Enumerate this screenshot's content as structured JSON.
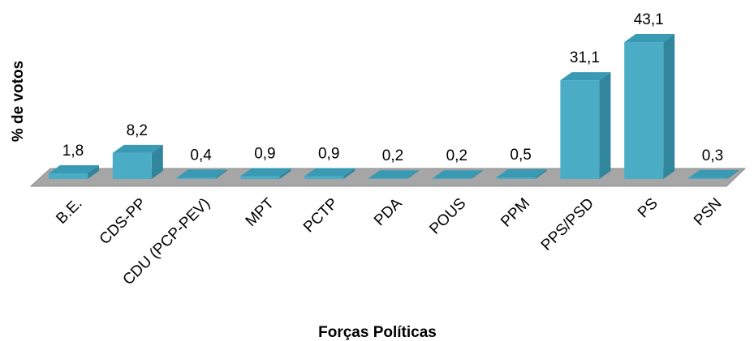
{
  "chart_data": {
    "type": "bar3d",
    "x_label": "Forças Políticas",
    "y_label": "% de votos",
    "categories": [
      "B.E.",
      "CDS-PP",
      "CDU (PCP-PEV)",
      "MPT",
      "PCTP",
      "PDA",
      "POUS",
      "PPM",
      "PPS/PSD",
      "PS",
      "PSN"
    ],
    "values": [
      1.8,
      8.2,
      0.4,
      0.9,
      0.9,
      0.2,
      0.2,
      0.5,
      31.1,
      43.1,
      0.3
    ],
    "value_labels": [
      "1,8",
      "8,2",
      "0,4",
      "0,9",
      "0,9",
      "0,2",
      "0,2",
      "0,5",
      "31,1",
      "43,1",
      "0,3"
    ],
    "color": "#4bacc6"
  }
}
